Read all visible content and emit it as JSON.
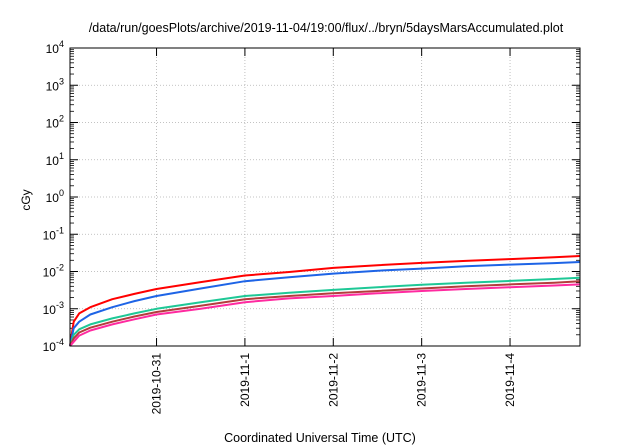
{
  "chart_data": {
    "type": "line",
    "title": "/data/run/goesPlots/archive/2019-11-04/19:00/flux/../bryn/5daysMarsAccumulated.plot",
    "xlabel": "Coordinated Universal Time (UTC)",
    "ylabel": "cGy",
    "yscale": "log",
    "ylim": [
      0.0001,
      10000
    ],
    "xlim": [
      "2019-10-30T00:30",
      "2019-11-04T19:00"
    ],
    "grid": true,
    "yticks": [
      {
        "base": "10",
        "exp": "-4",
        "value": 0.0001
      },
      {
        "base": "10",
        "exp": "-3",
        "value": 0.001
      },
      {
        "base": "10",
        "exp": "-2",
        "value": 0.01
      },
      {
        "base": "10",
        "exp": "-1",
        "value": 0.1
      },
      {
        "base": "10",
        "exp": "0",
        "value": 1
      },
      {
        "base": "10",
        "exp": "1",
        "value": 10
      },
      {
        "base": "10",
        "exp": "2",
        "value": 100
      },
      {
        "base": "10",
        "exp": "3",
        "value": 1000
      },
      {
        "base": "10",
        "exp": "4",
        "value": 10000
      }
    ],
    "xticks": [
      {
        "label": "2019-10-31",
        "value": "2019-10-31T00:00"
      },
      {
        "label": "2019-11-1",
        "value": "2019-11-01T00:00"
      },
      {
        "label": "2019-11-2",
        "value": "2019-11-02T00:00"
      },
      {
        "label": "2019-11-3",
        "value": "2019-11-03T00:00"
      },
      {
        "label": "2019-11-4",
        "value": "2019-11-04T00:00"
      }
    ],
    "x": [
      "2019-10-30T00:30",
      "2019-10-30T01:30",
      "2019-10-30T03:00",
      "2019-10-30T06:00",
      "2019-10-30T12:00",
      "2019-10-30T18:00",
      "2019-10-31T00:00",
      "2019-10-31T12:00",
      "2019-11-01T00:00",
      "2019-11-01T12:00",
      "2019-11-02T00:00",
      "2019-11-02T12:00",
      "2019-11-03T00:00",
      "2019-11-03T12:00",
      "2019-11-04T00:00",
      "2019-11-04T12:00",
      "2019-11-04T19:00"
    ],
    "series": [
      {
        "color": "#ff0000",
        "values": [
          0.0001,
          0.00045,
          0.00075,
          0.0011,
          0.0018,
          0.0025,
          0.0034,
          0.0052,
          0.0078,
          0.0097,
          0.0125,
          0.0148,
          0.017,
          0.0192,
          0.0215,
          0.024,
          0.026
        ]
      },
      {
        "color": "#1e64e6",
        "values": [
          0.0001,
          0.0003,
          0.00045,
          0.0007,
          0.0011,
          0.0016,
          0.0022,
          0.0035,
          0.0055,
          0.007,
          0.0088,
          0.0105,
          0.012,
          0.0138,
          0.0153,
          0.0168,
          0.018
        ]
      },
      {
        "color": "#1ec896",
        "values": [
          0.0001,
          0.0002,
          0.00028,
          0.00038,
          0.00055,
          0.00075,
          0.001,
          0.0015,
          0.0022,
          0.0027,
          0.0032,
          0.0038,
          0.0044,
          0.005,
          0.0056,
          0.0063,
          0.0068
        ]
      },
      {
        "color": "#b43c3c",
        "values": [
          0.0001,
          0.00016,
          0.00023,
          0.00031,
          0.00045,
          0.00062,
          0.00082,
          0.0012,
          0.0018,
          0.0022,
          0.0026,
          0.003,
          0.0035,
          0.004,
          0.0045,
          0.005,
          0.0055
        ]
      },
      {
        "color": "#ff2aa0",
        "values": [
          0.0001,
          0.00013,
          0.00019,
          0.00026,
          0.00038,
          0.00052,
          0.0007,
          0.001,
          0.0015,
          0.0019,
          0.0022,
          0.0026,
          0.003,
          0.0034,
          0.0038,
          0.0042,
          0.0045
        ]
      }
    ]
  }
}
